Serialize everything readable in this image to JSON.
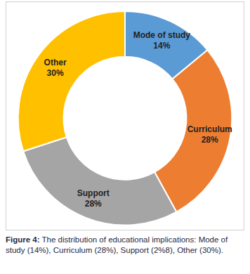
{
  "chart_data": {
    "type": "donut",
    "categories": [
      "Mode of study",
      "Curriculum",
      "Support",
      "Other"
    ],
    "values": [
      14,
      28,
      28,
      30
    ],
    "value_labels": [
      "14%",
      "28%",
      "28%",
      "30%"
    ],
    "colors": [
      "#5b9bd5",
      "#ed7d31",
      "#a5a5a5",
      "#ffc000"
    ],
    "data_labels": true,
    "caption": "Figure 4: The distribution of educational implications: Mode of study (14%), Curriculum (28%), Support (2%8), Other (30%)."
  }
}
